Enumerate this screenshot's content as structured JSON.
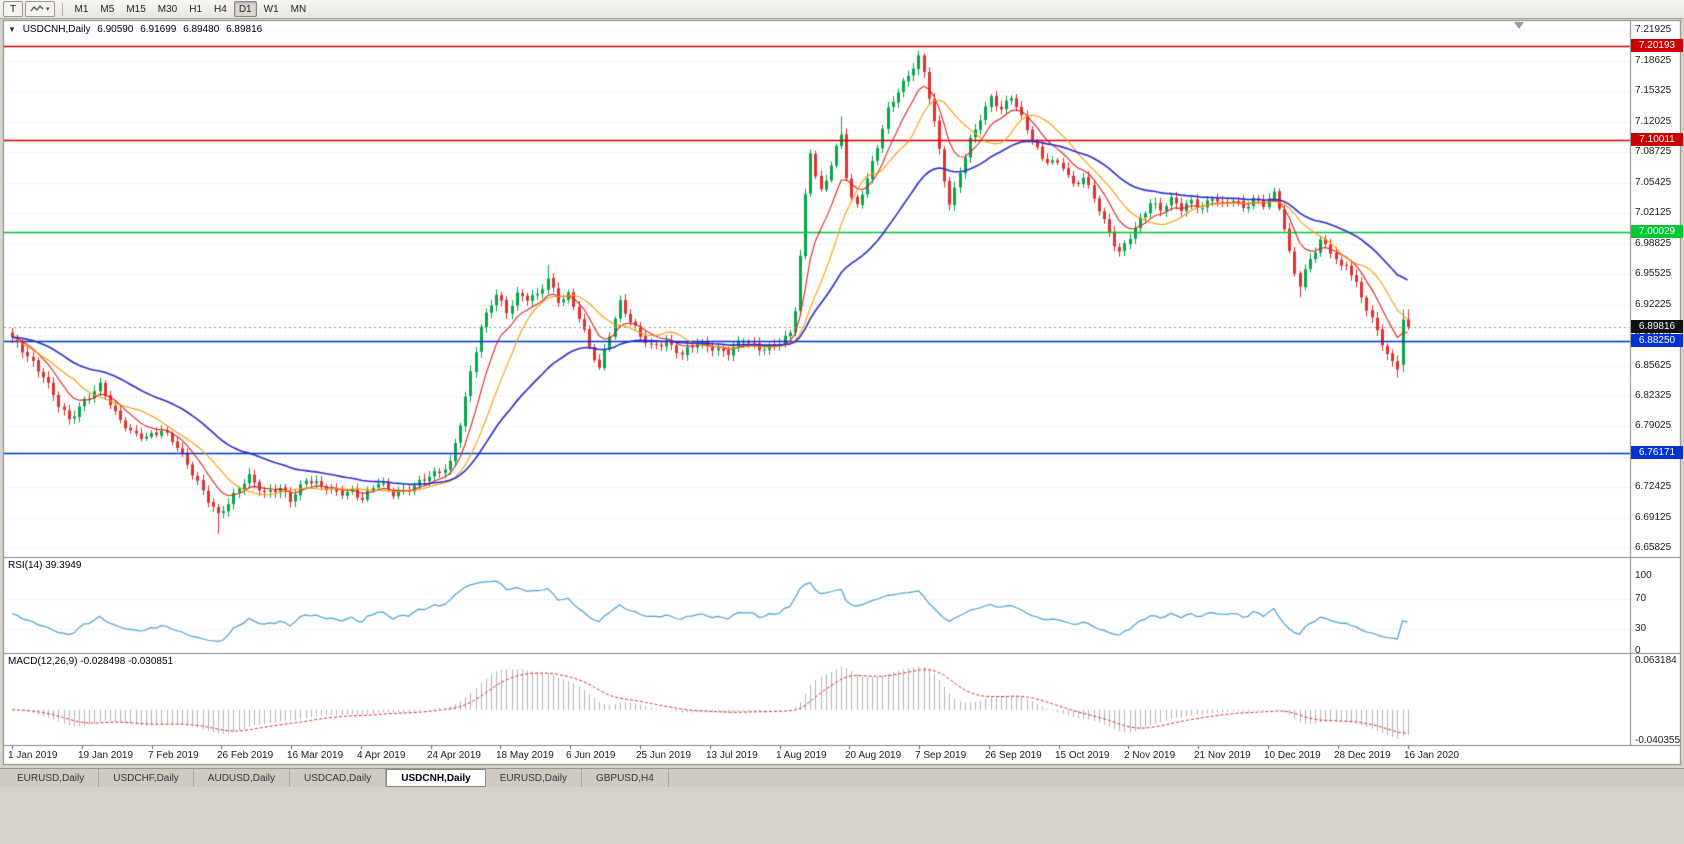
{
  "toolbar": {
    "tool_button_label": "T",
    "timeframes": [
      "M1",
      "M5",
      "M15",
      "M30",
      "H1",
      "H4",
      "D1",
      "W1",
      "MN"
    ],
    "active_timeframe": "D1"
  },
  "icons": {
    "chevron_down": "▾",
    "collapse_arrow": "▼"
  },
  "symbol_header": {
    "symbol": "USDCNH,Daily",
    "open": "6.90590",
    "high": "6.91699",
    "low": "6.89480",
    "close": "6.89816"
  },
  "price_axis_labels": [
    "7.21925",
    "7.18625",
    "7.15325",
    "7.12025",
    "7.08725",
    "7.05425",
    "7.02125",
    "6.98825",
    "6.95525",
    "6.92225",
    "6.88925",
    "6.85625",
    "6.82325",
    "6.79025",
    "6.75725",
    "6.72425",
    "6.69125",
    "6.65825"
  ],
  "hlines": [
    {
      "label": "7.20193",
      "price": 7.20193,
      "color": "#cc0000"
    },
    {
      "label": "7.10011",
      "price": 7.10011,
      "color": "#cc0000"
    },
    {
      "label": "7.00029",
      "price": 7.00029,
      "color": "#00c832"
    },
    {
      "label": "6.88250",
      "price": 6.8825,
      "color": "#0032d2"
    },
    {
      "label": "6.76171",
      "price": 6.76171,
      "color": "#0032d2"
    }
  ],
  "current_price": {
    "label": "6.89816",
    "price": 6.89816,
    "badge_bg": "#111111"
  },
  "date_axis_labels": [
    "1 Jan 2019",
    "19 Jan 2019",
    "7 Feb 2019",
    "26 Feb 2019",
    "16 Mar 2019",
    "4 Apr 2019",
    "24 Apr 2019",
    "18 May 2019",
    "6 Jun 2019",
    "25 Jun 2019",
    "13 Jul 2019",
    "1 Aug 2019",
    "20 Aug 2019",
    "7 Sep 2019",
    "26 Sep 2019",
    "15 Oct 2019",
    "2 Nov 2019",
    "21 Nov 2019",
    "10 Dec 2019",
    "28 Dec 2019",
    "16 Jan 2020"
  ],
  "rsi_panel": {
    "header": "RSI(14) 39.3949",
    "axis_labels": [
      "100",
      "70",
      "30",
      "0"
    ],
    "line_color": "#4da0d8"
  },
  "macd_panel": {
    "header": "MACD(12,26,9) -0.028498 -0.030851",
    "axis_top_label": "0.063184",
    "axis_bottom_label": "-0.040355",
    "histogram_color": "#b4b4b4",
    "signal_color": "#e03030"
  },
  "tabs": [
    "EURUSD,Daily",
    "USDCHF,Daily",
    "AUDUSD,Daily",
    "USDCAD,Daily",
    "USDCNH,Daily",
    "EURUSD,Daily",
    "GBPUSD,H4"
  ],
  "active_tab_index": 4,
  "chart_data": {
    "type": "candlestick",
    "symbol": "USDCNH",
    "timeframe": "Daily",
    "bars_total": 272,
    "price_axis_top": 7.226,
    "price_axis_bottom": 6.65,
    "up_color": "#06a64a",
    "down_color": "#e03131",
    "ma_lines": [
      {
        "name": "fast",
        "method": "ema",
        "period": 8,
        "color": "#e02020",
        "width": 1.1
      },
      {
        "name": "medium",
        "method": "sma",
        "period": 13,
        "color": "#ff9800",
        "width": 1.1
      },
      {
        "name": "slow",
        "method": "ema",
        "period": 34,
        "color": "#2b2bd4",
        "width": 1.6
      }
    ],
    "close_waypoints": [
      [
        0,
        6.884
      ],
      [
        3,
        6.868
      ],
      [
        6,
        6.846
      ],
      [
        9,
        6.812
      ],
      [
        11,
        6.796
      ],
      [
        14,
        6.82
      ],
      [
        17,
        6.835
      ],
      [
        20,
        6.802
      ],
      [
        23,
        6.785
      ],
      [
        26,
        6.78
      ],
      [
        29,
        6.784
      ],
      [
        32,
        6.768
      ],
      [
        35,
        6.742
      ],
      [
        38,
        6.71
      ],
      [
        40,
        6.692
      ],
      [
        42,
        6.706
      ],
      [
        44,
        6.726
      ],
      [
        46,
        6.738
      ],
      [
        49,
        6.716
      ],
      [
        52,
        6.722
      ],
      [
        54,
        6.712
      ],
      [
        57,
        6.734
      ],
      [
        60,
        6.724
      ],
      [
        63,
        6.718
      ],
      [
        66,
        6.722
      ],
      [
        68,
        6.712
      ],
      [
        71,
        6.728
      ],
      [
        74,
        6.718
      ],
      [
        77,
        6.724
      ],
      [
        80,
        6.732
      ],
      [
        83,
        6.74
      ],
      [
        85,
        6.752
      ],
      [
        87,
        6.796
      ],
      [
        89,
        6.848
      ],
      [
        91,
        6.896
      ],
      [
        93,
        6.922
      ],
      [
        94,
        6.934
      ],
      [
        96,
        6.916
      ],
      [
        98,
        6.934
      ],
      [
        100,
        6.928
      ],
      [
        102,
        6.93
      ],
      [
        104,
        6.95
      ],
      [
        106,
        6.928
      ],
      [
        108,
        6.934
      ],
      [
        110,
        6.908
      ],
      [
        112,
        6.874
      ],
      [
        114,
        6.852
      ],
      [
        116,
        6.892
      ],
      [
        118,
        6.926
      ],
      [
        120,
        6.904
      ],
      [
        122,
        6.886
      ],
      [
        124,
        6.876
      ],
      [
        127,
        6.884
      ],
      [
        130,
        6.868
      ],
      [
        133,
        6.88
      ],
      [
        136,
        6.876
      ],
      [
        139,
        6.872
      ],
      [
        142,
        6.882
      ],
      [
        145,
        6.874
      ],
      [
        148,
        6.88
      ],
      [
        151,
        6.89
      ],
      [
        152,
        6.916
      ],
      [
        153,
        6.972
      ],
      [
        154,
        7.038
      ],
      [
        155,
        7.088
      ],
      [
        156,
        7.062
      ],
      [
        157,
        7.046
      ],
      [
        158,
        7.06
      ],
      [
        160,
        7.092
      ],
      [
        161,
        7.106
      ],
      [
        162,
        7.06
      ],
      [
        163,
        7.034
      ],
      [
        164,
        7.028
      ],
      [
        166,
        7.058
      ],
      [
        168,
        7.096
      ],
      [
        170,
        7.134
      ],
      [
        172,
        7.152
      ],
      [
        174,
        7.168
      ],
      [
        176,
        7.19
      ],
      [
        177,
        7.174
      ],
      [
        178,
        7.15
      ],
      [
        179,
        7.122
      ],
      [
        180,
        7.09
      ],
      [
        181,
        7.058
      ],
      [
        182,
        7.03
      ],
      [
        183,
        7.044
      ],
      [
        184,
        7.064
      ],
      [
        186,
        7.1
      ],
      [
        188,
        7.126
      ],
      [
        190,
        7.148
      ],
      [
        192,
        7.132
      ],
      [
        194,
        7.146
      ],
      [
        196,
        7.124
      ],
      [
        198,
        7.102
      ],
      [
        200,
        7.082
      ],
      [
        202,
        7.076
      ],
      [
        204,
        7.07
      ],
      [
        206,
        7.05
      ],
      [
        208,
        7.062
      ],
      [
        210,
        7.04
      ],
      [
        212,
        7.012
      ],
      [
        214,
        6.986
      ],
      [
        215,
        6.976
      ],
      [
        217,
        6.996
      ],
      [
        219,
        7.016
      ],
      [
        221,
        7.034
      ],
      [
        223,
        7.024
      ],
      [
        225,
        7.034
      ],
      [
        227,
        7.026
      ],
      [
        229,
        7.036
      ],
      [
        231,
        7.028
      ],
      [
        233,
        7.038
      ],
      [
        235,
        7.028
      ],
      [
        237,
        7.036
      ],
      [
        239,
        7.028
      ],
      [
        241,
        7.038
      ],
      [
        243,
        7.03
      ],
      [
        245,
        7.04
      ],
      [
        246,
        7.026
      ],
      [
        247,
        7.004
      ],
      [
        248,
        6.978
      ],
      [
        249,
        6.958
      ],
      [
        250,
        6.946
      ],
      [
        251,
        6.96
      ],
      [
        252,
        6.972
      ],
      [
        254,
        6.99
      ],
      [
        256,
        6.978
      ],
      [
        258,
        6.962
      ],
      [
        259,
        6.968
      ],
      [
        261,
        6.946
      ],
      [
        263,
        6.918
      ],
      [
        265,
        6.892
      ],
      [
        267,
        6.866
      ],
      [
        269,
        6.852
      ],
      [
        270,
        6.906
      ],
      [
        271,
        6.898
      ]
    ],
    "extreme_wicks": [
      {
        "i": 40,
        "low": 6.674
      },
      {
        "i": 104,
        "high": 6.965
      },
      {
        "i": 161,
        "high": 7.126
      },
      {
        "i": 176,
        "high": 7.196
      },
      {
        "i": 250,
        "low": 6.93
      },
      {
        "i": 269,
        "low": 6.843
      }
    ],
    "last_two_bars": [
      [
        6.857,
        6.917,
        6.849,
        6.906
      ],
      [
        6.9059,
        6.91699,
        6.8948,
        6.89816
      ]
    ],
    "rsi": {
      "period": 14,
      "current": 39.3949
    },
    "macd": {
      "fast": 12,
      "slow": 26,
      "signal_period": 9,
      "current": -0.028498,
      "signal_current": -0.030851
    }
  }
}
